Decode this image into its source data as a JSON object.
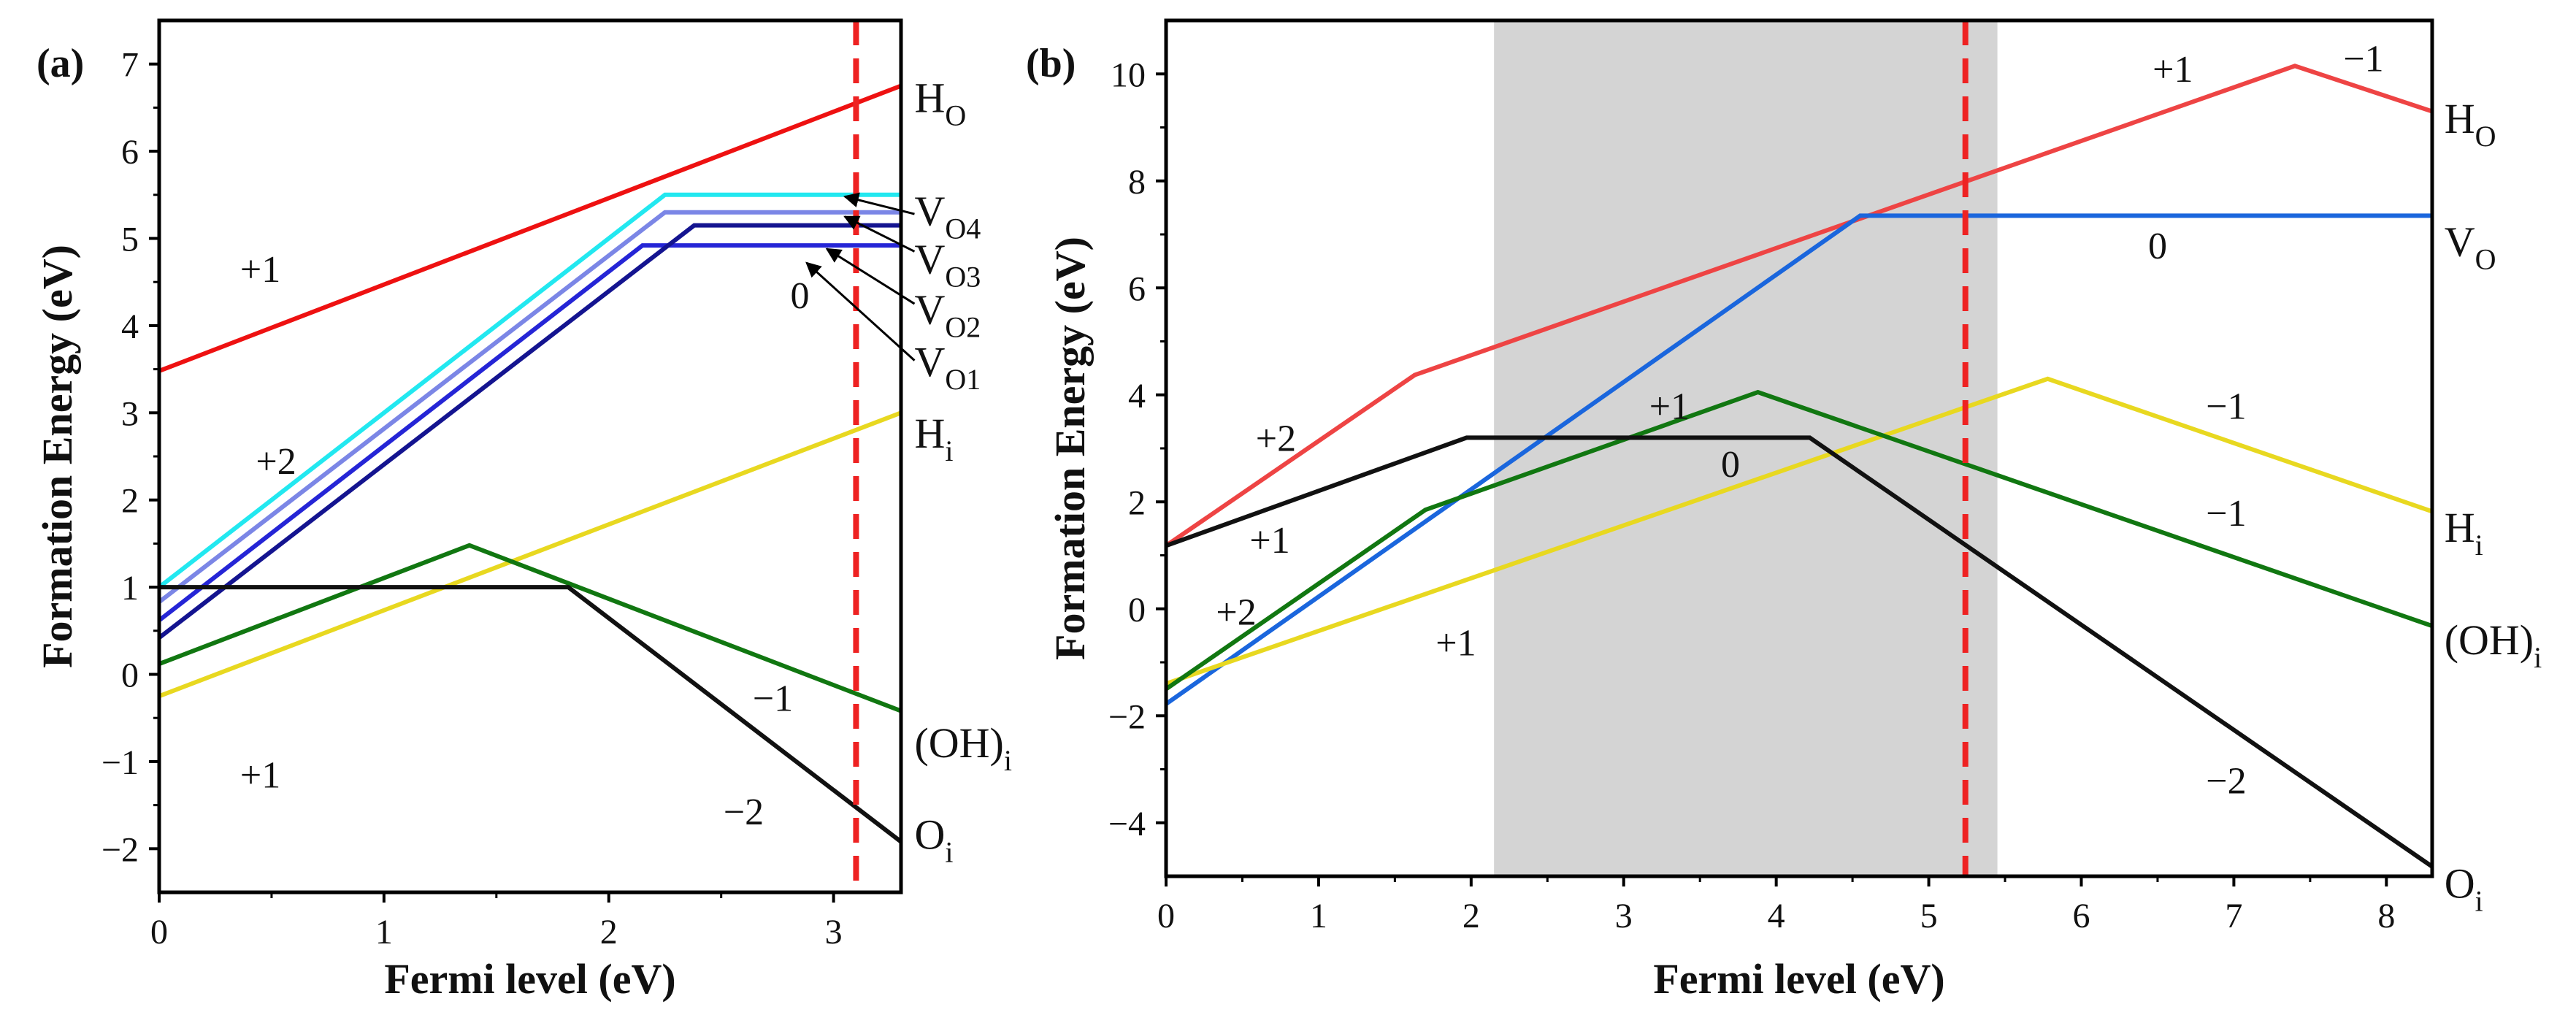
{
  "chart_data": [
    {
      "panel_label": "(a)",
      "type": "line",
      "xlabel": "Fermi level (eV)",
      "ylabel": "Formation Energy (eV)",
      "xlim": [
        0,
        3.3
      ],
      "ylim": [
        -2.5,
        7.5
      ],
      "xticks": [
        {
          "v": 0,
          "label": "0"
        },
        {
          "v": 1,
          "label": "1"
        },
        {
          "v": 2,
          "label": "2"
        },
        {
          "v": 3,
          "label": "3"
        }
      ],
      "yticks": [
        {
          "v": -2,
          "label": "−2"
        },
        {
          "v": -1,
          "label": "−1"
        },
        {
          "v": 0,
          "label": "0"
        },
        {
          "v": 1,
          "label": "1"
        },
        {
          "v": 2,
          "label": "2"
        },
        {
          "v": 3,
          "label": "3"
        },
        {
          "v": 4,
          "label": "4"
        },
        {
          "v": 5,
          "label": "5"
        },
        {
          "v": 6,
          "label": "6"
        },
        {
          "v": 7,
          "label": "7"
        }
      ],
      "vline": {
        "x": 3.1,
        "color": "#ee2222"
      },
      "shade": null,
      "series": [
        {
          "id": "HO",
          "label_main": "H",
          "label_sub": "O",
          "color": "#ee1111",
          "points": [
            [
              0,
              3.48
            ],
            [
              3.3,
              6.75
            ]
          ],
          "label_at": [
            3.36,
            6.45
          ]
        },
        {
          "id": "VO4",
          "label_main": "V",
          "label_sub": "O4",
          "color": "#22e8f0",
          "points": [
            [
              0,
              1.0
            ],
            [
              2.25,
              5.5
            ],
            [
              3.3,
              5.5
            ]
          ],
          "label_at": [
            3.36,
            5.15
          ]
        },
        {
          "id": "VO3",
          "label_main": "V",
          "label_sub": "O3",
          "color": "#7b86e6",
          "points": [
            [
              0,
              0.83
            ],
            [
              2.25,
              5.3
            ],
            [
              3.3,
              5.3
            ]
          ],
          "label_at": [
            3.36,
            4.6
          ]
        },
        {
          "id": "VO2",
          "label_main": "V",
          "label_sub": "O2",
          "color": "#2525d6",
          "points": [
            [
              0,
              0.62
            ],
            [
              2.15,
              4.92
            ],
            [
              3.3,
              4.92
            ]
          ],
          "label_at": [
            3.36,
            4.02
          ]
        },
        {
          "id": "VO1",
          "label_main": "V",
          "label_sub": "O1",
          "color": "#141490",
          "points": [
            [
              0,
              0.42
            ],
            [
              2.38,
              5.15
            ],
            [
              3.3,
              5.15
            ]
          ],
          "label_at": [
            3.36,
            3.42
          ]
        },
        {
          "id": "Hi",
          "label_main": "H",
          "label_sub": "i",
          "color": "#e8d820",
          "points": [
            [
              0,
              -0.25
            ],
            [
              3.3,
              3.0
            ]
          ],
          "label_at": [
            3.36,
            2.6
          ]
        },
        {
          "id": "OHi",
          "label_main": "(OH)",
          "label_sub": "i",
          "color": "#117711",
          "points": [
            [
              0,
              0.12
            ],
            [
              1.38,
              1.48
            ],
            [
              3.3,
              -0.42
            ]
          ],
          "label_at": [
            3.36,
            -0.95
          ]
        },
        {
          "id": "Oi",
          "label_main": "O",
          "label_sub": "i",
          "color": "#111111",
          "points": [
            [
              0,
              1.0
            ],
            [
              1.82,
              1.0
            ],
            [
              3.3,
              -1.92
            ]
          ],
          "label_at": [
            3.36,
            -2.0
          ]
        }
      ],
      "arrows": [
        {
          "from": [
            3.36,
            5.28
          ],
          "to": [
            3.05,
            5.48
          ]
        },
        {
          "from": [
            3.36,
            4.85
          ],
          "to": [
            3.05,
            5.25
          ]
        },
        {
          "from": [
            3.36,
            4.25
          ],
          "to": [
            2.97,
            4.88
          ]
        },
        {
          "from": [
            3.36,
            3.6
          ],
          "to": [
            2.88,
            4.72
          ]
        }
      ],
      "annotations": [
        {
          "text": "+1",
          "at": [
            0.45,
            4.5
          ]
        },
        {
          "text": "+2",
          "at": [
            0.52,
            2.3
          ]
        },
        {
          "text": "0",
          "at": [
            2.85,
            4.2
          ]
        },
        {
          "text": "−1",
          "at": [
            2.73,
            -0.42
          ]
        },
        {
          "text": "+1",
          "at": [
            0.45,
            -1.3
          ]
        },
        {
          "text": "−2",
          "at": [
            2.6,
            -1.72
          ]
        }
      ]
    },
    {
      "panel_label": "(b)",
      "type": "line",
      "xlabel": "Fermi level (eV)",
      "ylabel": "Formation Energy (eV)",
      "xlim": [
        0,
        8.3
      ],
      "ylim": [
        -5,
        11
      ],
      "xticks": [
        {
          "v": 0,
          "label": "0"
        },
        {
          "v": 1,
          "label": "1"
        },
        {
          "v": 2,
          "label": "2"
        },
        {
          "v": 3,
          "label": "3"
        },
        {
          "v": 4,
          "label": "4"
        },
        {
          "v": 5,
          "label": "5"
        },
        {
          "v": 6,
          "label": "6"
        },
        {
          "v": 7,
          "label": "7"
        },
        {
          "v": 8,
          "label": "8"
        }
      ],
      "yticks": [
        {
          "v": -4,
          "label": "−4"
        },
        {
          "v": -2,
          "label": "−2"
        },
        {
          "v": 0,
          "label": "0"
        },
        {
          "v": 2,
          "label": "2"
        },
        {
          "v": 4,
          "label": "4"
        },
        {
          "v": 6,
          "label": "6"
        },
        {
          "v": 8,
          "label": "8"
        },
        {
          "v": 10,
          "label": "10"
        }
      ],
      "vline": {
        "x": 5.24,
        "color": "#ee2222"
      },
      "shade": {
        "x0": 2.15,
        "x1": 5.45,
        "color": "#d4d4d4"
      },
      "series": [
        {
          "id": "HO",
          "label_main": "H",
          "label_sub": "O",
          "color": "#ee4444",
          "points": [
            [
              0,
              1.18
            ],
            [
              1.63,
              4.37
            ],
            [
              7.4,
              10.15
            ],
            [
              8.3,
              9.3
            ]
          ],
          "label_at": [
            8.38,
            8.9
          ]
        },
        {
          "id": "VO",
          "label_main": "V",
          "label_sub": "O",
          "color": "#1a66dd",
          "points": [
            [
              0,
              -1.78
            ],
            [
              4.55,
              7.35
            ],
            [
              8.3,
              7.35
            ]
          ],
          "label_at": [
            8.38,
            6.6
          ]
        },
        {
          "id": "Hi",
          "label_main": "H",
          "label_sub": "i",
          "color": "#e8d820",
          "points": [
            [
              0,
              -1.4
            ],
            [
              5.78,
              4.3
            ],
            [
              8.3,
              1.82
            ]
          ],
          "label_at": [
            8.38,
            1.25
          ]
        },
        {
          "id": "OHi",
          "label_main": "(OH)",
          "label_sub": "i",
          "color": "#117711",
          "points": [
            [
              0,
              -1.5
            ],
            [
              1.7,
              1.85
            ],
            [
              3.88,
              4.05
            ],
            [
              8.3,
              -0.32
            ]
          ],
          "label_at": [
            8.38,
            -0.85
          ]
        },
        {
          "id": "Oi",
          "label_main": "O",
          "label_sub": "i",
          "color": "#111111",
          "points": [
            [
              0,
              1.18
            ],
            [
              1.97,
              3.2
            ],
            [
              4.22,
              3.2
            ],
            [
              8.3,
              -4.82
            ]
          ],
          "label_at": [
            8.38,
            -5.4
          ]
        }
      ],
      "arrows": [],
      "annotations": [
        {
          "text": "+1",
          "at": [
            6.6,
            9.85
          ]
        },
        {
          "text": "−1",
          "at": [
            7.85,
            10.05
          ]
        },
        {
          "text": "0",
          "at": [
            6.5,
            6.55
          ]
        },
        {
          "text": "+2",
          "at": [
            0.72,
            2.95
          ]
        },
        {
          "text": "+1",
          "at": [
            3.3,
            3.55
          ]
        },
        {
          "text": "0",
          "at": [
            3.7,
            2.47
          ]
        },
        {
          "text": "−1",
          "at": [
            6.95,
            3.55
          ]
        },
        {
          "text": "+1",
          "at": [
            0.68,
            1.05
          ]
        },
        {
          "text": "−1",
          "at": [
            6.95,
            1.55
          ]
        },
        {
          "text": "+2",
          "at": [
            0.46,
            -0.3
          ]
        },
        {
          "text": "+1",
          "at": [
            1.9,
            -0.87
          ]
        },
        {
          "text": "−2",
          "at": [
            6.95,
            -3.45
          ]
        }
      ]
    }
  ]
}
